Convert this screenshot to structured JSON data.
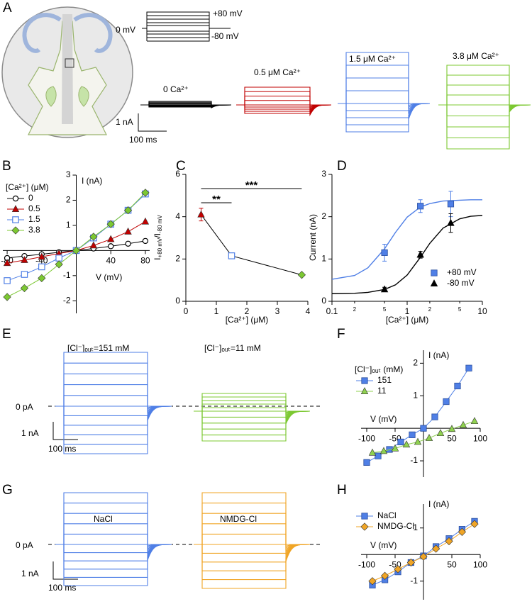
{
  "panel_labels": [
    "A",
    "B",
    "C",
    "D",
    "E",
    "F",
    "G",
    "H"
  ],
  "panel_a": {
    "protocol": {
      "hold": "0 mV",
      "max": "+80 mV",
      "min": "-80 mV"
    },
    "traces": [
      {
        "label": "0 Ca²⁺",
        "color": "#000000"
      },
      {
        "label": "0.5 μM Ca²⁺",
        "color": "#c00000"
      },
      {
        "label": "1.5 μM Ca²⁺",
        "color": "#4f7fe6"
      },
      {
        "label": "3.8 μM Ca²⁺",
        "color": "#7cc832"
      }
    ],
    "scale": {
      "current": "1 nA",
      "time": "100 ms"
    }
  },
  "panel_e": {
    "traces": [
      {
        "label": "[Cl⁻]ₒᵤₜ=151 mM",
        "color": "#4f7fe6"
      },
      {
        "label": "[Cl⁻]ₒᵤₜ=11 mM",
        "color": "#7cc832"
      }
    ],
    "zero": "0 pA",
    "scale": {
      "current": "1 nA",
      "time": "100 ms"
    }
  },
  "panel_g": {
    "traces": [
      {
        "label": "NaCl",
        "color": "#4f7fe6"
      },
      {
        "label": "NMDG-Cl",
        "color": "#f0a526"
      }
    ],
    "zero": "0 pA",
    "scale": {
      "current": "1 nA",
      "time": "100 ms"
    }
  },
  "chart_data": [
    {
      "type": "line",
      "axes": "zero",
      "xlabel": "V (mV)",
      "ylabel": "I (nA)",
      "legend": "upper-left",
      "legend_title": "[Ca²⁺] (μM)",
      "xlim": [
        -85,
        85
      ],
      "ylim": [
        -2.5,
        3
      ],
      "xticks": [
        -80,
        -40,
        40,
        80
      ],
      "yticks": [
        -2,
        -1,
        1,
        2,
        3
      ],
      "x": [
        -80,
        -60,
        -40,
        -20,
        0,
        20,
        40,
        60,
        80
      ],
      "series": [
        {
          "name": "0",
          "color": "#000000",
          "marker": "circle-open",
          "values": [
            -0.3,
            -0.22,
            -0.15,
            -0.07,
            0,
            0.08,
            0.17,
            0.27,
            0.38
          ]
        },
        {
          "name": "0.5",
          "color": "#c00000",
          "marker": "triangle",
          "values": [
            -0.5,
            -0.38,
            -0.25,
            -0.12,
            0,
            0.2,
            0.45,
            0.75,
            1.15
          ]
        },
        {
          "name": "1.5",
          "color": "#4f7fe6",
          "marker": "square-open",
          "values": [
            -1.2,
            -0.95,
            -0.65,
            -0.3,
            0,
            0.5,
            1.05,
            1.6,
            2.25
          ]
        },
        {
          "name": "3.8",
          "color": "#7cc832",
          "marker": "diamond",
          "values": [
            -1.85,
            -1.5,
            -1.1,
            -0.55,
            0,
            0.55,
            1.05,
            1.6,
            2.3
          ]
        }
      ]
    },
    {
      "type": "line",
      "axes": "box",
      "xlabel": "[Ca²⁺] (μM)",
      "ylabel": [
        "I",
        "+80 mV",
        "/I",
        "-80 mV"
      ],
      "xlim": [
        0,
        4
      ],
      "ylim": [
        0,
        6
      ],
      "xticks": [
        0,
        1,
        2,
        3,
        4
      ],
      "yticks": [
        0,
        2,
        4,
        6
      ],
      "x": [
        0.5,
        1.5,
        3.8
      ],
      "series": [
        {
          "color": "#000000",
          "markers": [
            "triangle",
            "square-open",
            "diamond"
          ],
          "marker_colors": [
            "#c00000",
            "#4f7fe6",
            "#7cc832"
          ],
          "values": [
            4.1,
            2.15,
            1.25
          ],
          "errors": [
            0.3,
            0.05,
            0.05
          ]
        }
      ],
      "significance": [
        {
          "label": "**"
        },
        {
          "label": "***"
        }
      ]
    },
    {
      "type": "scatter",
      "axes": "box",
      "xscale": "log",
      "xlabel": "[Ca²⁺] (μM)",
      "ylabel": "Current (nA)",
      "legend": "lower-right",
      "xlim": [
        0.1,
        10
      ],
      "ylim": [
        0,
        3
      ],
      "xticks": [
        0.1,
        {
          "value": 0.2,
          "label": "2"
        },
        {
          "value": 0.5,
          "label": "5"
        },
        1,
        {
          "value": 2,
          "label": "2"
        },
        {
          "value": 5,
          "label": "5"
        },
        10
      ],
      "yticks": [
        0,
        1,
        2,
        3
      ],
      "x": [
        0.5,
        1.5,
        3.8
      ],
      "fit_x": [
        0.1,
        0.2,
        0.3,
        0.5,
        0.7,
        1,
        1.5,
        2,
        3,
        5,
        7,
        10
      ],
      "series": [
        {
          "name": "+80 mV",
          "color": "#4f7fe6",
          "marker": "square",
          "values": [
            1.15,
            2.25,
            2.3
          ],
          "errors": [
            0.2,
            0.15,
            0.3
          ],
          "fit_values": [
            0.52,
            0.61,
            0.79,
            1.24,
            1.63,
            1.99,
            2.23,
            2.31,
            2.37,
            2.39,
            2.4,
            2.4
          ]
        },
        {
          "name": "-80 mV",
          "color": "#000000",
          "marker": "triangle",
          "values": [
            0.28,
            1.1,
            1.85
          ],
          "errors": [
            0.05,
            0.08,
            0.22
          ],
          "fit_values": [
            0.18,
            0.19,
            0.21,
            0.28,
            0.39,
            0.62,
            1.04,
            1.37,
            1.73,
            1.95,
            2.01,
            2.03
          ]
        }
      ]
    },
    {
      "type": "line",
      "axes": "zero",
      "xlabel": "V (mV)",
      "ylabel": "I (nA)",
      "legend": "upper-left",
      "legend_title": "[Cl⁻]ₒᵤₜ (mM)",
      "xlim": [
        -110,
        100
      ],
      "ylim": [
        -1.5,
        2.4
      ],
      "xticks": [
        -100,
        -50,
        50,
        100
      ],
      "yticks": [
        -1,
        1,
        2
      ],
      "series": [
        {
          "name": "151",
          "color": "#4f7fe6",
          "marker": "square",
          "x": [
            -100,
            -80,
            -60,
            -40,
            -20,
            0,
            20,
            40,
            60,
            80
          ],
          "values": [
            -1.05,
            -0.85,
            -0.65,
            -0.42,
            -0.2,
            0,
            0.35,
            0.82,
            1.3,
            1.85
          ]
        },
        {
          "name": "11",
          "color": "#8fd14f",
          "marker": "triangle",
          "x": [
            -90,
            -70,
            -50,
            -30,
            -10,
            10,
            30,
            50,
            70,
            90
          ],
          "values": [
            -0.75,
            -0.7,
            -0.62,
            -0.5,
            -0.42,
            -0.3,
            -0.15,
            -0.02,
            0.1,
            0.22
          ]
        }
      ]
    },
    {
      "type": "line",
      "axes": "zero",
      "xlabel": "V (mV)",
      "ylabel": "I (nA)",
      "legend": "upper-left",
      "xlim": [
        -110,
        100
      ],
      "ylim": [
        -1.7,
        1.9
      ],
      "xticks": [
        -100,
        -50,
        50,
        100
      ],
      "yticks": [
        -1,
        1
      ],
      "x": [
        -90,
        -68,
        -45,
        -22,
        0,
        22,
        45,
        68,
        90
      ],
      "series": [
        {
          "name": "NaCl",
          "color": "#4f7fe6",
          "marker": "square",
          "values": [
            -1.15,
            -0.95,
            -0.65,
            -0.3,
            -0.05,
            0.3,
            0.6,
            0.95,
            1.25
          ]
        },
        {
          "name": "NMDG-Cl",
          "color": "#f0a526",
          "marker": "diamond",
          "values": [
            -1.0,
            -0.8,
            -0.55,
            -0.3,
            -0.08,
            0.22,
            0.5,
            0.85,
            1.15
          ]
        }
      ]
    }
  ]
}
